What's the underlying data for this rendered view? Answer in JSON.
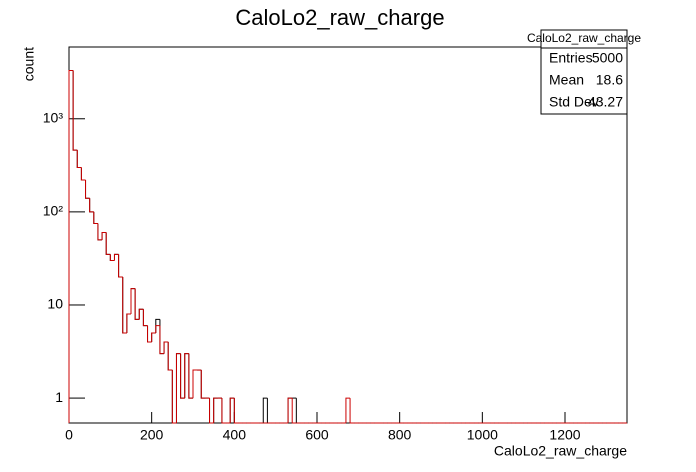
{
  "chart_data": {
    "type": "histogram",
    "title": "CaloLo2_raw_charge",
    "xlabel": "CaloLo2_raw_charge",
    "ylabel": "count",
    "bins": [
      0,
      10,
      20,
      30,
      40,
      50,
      60,
      70,
      80,
      90,
      100,
      110,
      120,
      130,
      140,
      150,
      160,
      170,
      180,
      190,
      200,
      210,
      220,
      230,
      240,
      250,
      260,
      270,
      280,
      290,
      300,
      310,
      320,
      330,
      340,
      350,
      360,
      370,
      380,
      390,
      400,
      410,
      420,
      430,
      440,
      450,
      460,
      470,
      480,
      490,
      500,
      510,
      520,
      530,
      540,
      550,
      560,
      570,
      580,
      590,
      600,
      610,
      620,
      630,
      640,
      650,
      660,
      670,
      680,
      690,
      700,
      710,
      720,
      730,
      740,
      750,
      760,
      770,
      780,
      790,
      800,
      810,
      820,
      830,
      840,
      850,
      860,
      870,
      880,
      890,
      900,
      910,
      920,
      930,
      940,
      950,
      960,
      970,
      980,
      990,
      1000,
      1010,
      1020,
      1030,
      1040,
      1050,
      1060,
      1070,
      1080,
      1090,
      1100,
      1110,
      1120,
      1130,
      1140,
      1150,
      1160,
      1170,
      1180,
      1190,
      1200,
      1210,
      1220,
      1230,
      1240,
      1250,
      1260,
      1270,
      1280,
      1290,
      1300,
      1310,
      1320,
      1330,
      1340,
      1350
    ],
    "series": [
      {
        "color": "#000000",
        "values": [
          3300,
          460,
          300,
          220,
          140,
          100,
          75,
          50,
          60,
          35,
          30,
          35,
          20,
          5,
          8,
          15,
          7,
          9,
          6,
          4,
          5,
          7,
          3,
          4,
          2,
          0,
          3,
          1,
          3,
          1,
          2,
          2,
          1,
          1,
          0,
          1,
          1,
          0,
          0,
          1,
          0,
          0,
          0,
          0,
          0,
          0,
          0,
          1,
          0,
          0,
          0,
          0,
          0,
          1,
          1,
          0,
          0,
          0,
          0,
          0,
          0,
          0,
          0,
          0,
          0,
          0,
          0,
          0,
          0,
          0,
          0,
          0,
          0,
          0,
          0,
          0,
          0,
          0,
          0,
          0,
          0,
          0,
          0,
          0,
          0,
          0,
          0,
          0,
          0,
          0,
          0,
          0,
          0,
          0,
          0,
          0,
          0,
          0,
          0,
          0,
          0,
          0,
          0,
          0,
          0,
          0,
          0,
          0,
          0,
          0,
          0,
          0,
          0,
          0,
          0,
          0,
          0,
          0,
          0,
          0,
          0,
          0,
          0,
          0,
          0,
          0,
          0,
          0,
          0,
          0,
          0,
          0,
          0,
          0,
          0
        ]
      },
      {
        "color": "#cc0000",
        "values": [
          3300,
          460,
          300,
          220,
          140,
          100,
          75,
          50,
          60,
          35,
          30,
          35,
          20,
          5,
          8,
          15,
          7,
          9,
          6,
          4,
          5,
          6,
          3,
          4,
          2,
          0,
          3,
          1,
          3,
          1,
          2,
          2,
          1,
          1,
          0,
          1,
          1,
          0,
          0,
          1,
          0,
          0,
          0,
          0,
          0,
          0,
          0,
          0,
          0,
          0,
          0,
          0,
          0,
          1,
          0,
          0,
          0,
          0,
          0,
          0,
          0,
          0,
          0,
          0,
          0,
          0,
          0,
          1,
          0,
          0,
          0,
          0,
          0,
          0,
          0,
          0,
          0,
          0,
          0,
          0,
          0,
          0,
          0,
          0,
          0,
          0,
          0,
          0,
          0,
          0,
          0,
          0,
          0,
          0,
          0,
          0,
          0,
          0,
          0,
          0,
          0,
          0,
          0,
          0,
          0,
          0,
          0,
          0,
          0,
          0,
          0,
          0,
          0,
          0,
          0,
          0,
          0,
          0,
          0,
          0,
          0,
          0,
          0,
          0,
          0,
          0,
          0,
          0,
          0,
          0,
          0,
          0,
          0,
          0,
          0
        ]
      }
    ],
    "xlim": [
      0,
      1350
    ],
    "xticks": [
      0,
      200,
      400,
      600,
      800,
      1000,
      1200
    ],
    "ylim": [
      0.54,
      5900
    ],
    "ylog": true,
    "yticks": [
      1,
      10,
      {
        "value": 100,
        "label": "10²"
      },
      {
        "value": 1000,
        "label": "10³"
      }
    ],
    "stats": {
      "title": "CaloLo2_raw_charge",
      "rows": [
        {
          "label": "Entries",
          "value": 5000
        },
        {
          "label": "Mean",
          "value": 18.6
        },
        {
          "label": "Std Dev",
          "value": 43.27
        }
      ]
    }
  }
}
